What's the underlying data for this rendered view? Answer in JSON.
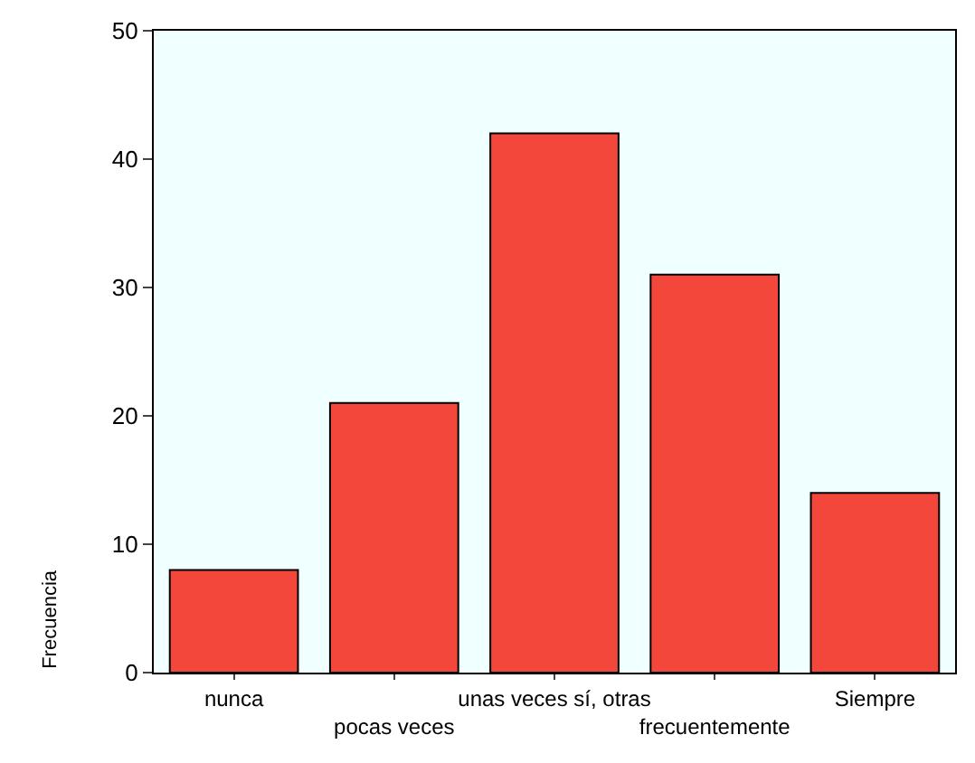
{
  "chart_data": {
    "type": "bar",
    "ylabel": "Frecuencia",
    "categories": [
      "nunca",
      "pocas veces",
      "unas veces sí, otras",
      "frecuentemente",
      "Siempre"
    ],
    "values": [
      8,
      21,
      42,
      31,
      14
    ],
    "color": "#f4473b",
    "ylim": [
      0,
      50
    ],
    "yticks": [
      0,
      10,
      20,
      30,
      40,
      50
    ],
    "grid": false,
    "legend": false
  }
}
